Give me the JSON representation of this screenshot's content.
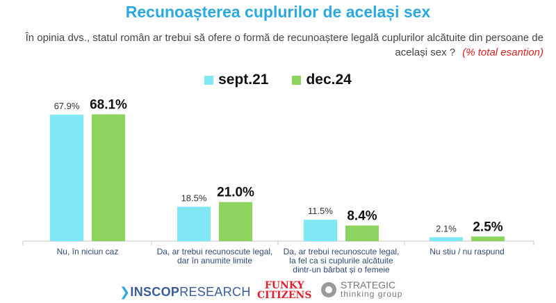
{
  "header": {
    "title": "Recunoașterea cuplurilor de același sex",
    "question": "În opinia dvs., statul român ar trebui să ofere o formă de recunoaștere legală cuplurilor alcătuite din persoane de același sex ?",
    "note": "(% total esantion)"
  },
  "colors": {
    "sept21": "#7fe8f4",
    "dec24": "#8dd360",
    "title": "#2aa8e0",
    "note": "#e02020"
  },
  "chart_data": {
    "type": "bar",
    "title": "Recunoașterea cuplurilor de același sex",
    "categories": [
      [
        "Nu, în niciun caz"
      ],
      [
        "Da, ar trebui recunoscute legal,",
        "dar în anumite limite"
      ],
      [
        "Da, ar trebui recunoscute legal,",
        "la fel ca si cuplurile alcătuite",
        "dintr-un bărbat și o femeie"
      ],
      [
        "Nu stiu / nu raspund"
      ]
    ],
    "series": [
      {
        "name": "sept.21",
        "values": [
          67.9,
          18.5,
          11.5,
          2.1
        ],
        "labels": [
          "67.9%",
          "18.5%",
          "11.5%",
          "2.1%"
        ]
      },
      {
        "name": "dec.24",
        "values": [
          68.1,
          21.0,
          8.4,
          2.5
        ],
        "labels": [
          "68.1%",
          "21.0%",
          "8.4%",
          "2.5%"
        ]
      }
    ],
    "ylim": [
      0,
      100
    ],
    "grid": false,
    "legend": "top-center"
  },
  "logos": {
    "inscop_bold": "INSCOP",
    "inscop_rest": "RESEARCH",
    "funky_line1": "FUNKY",
    "funky_line2": "CITIZENS",
    "strategic_line1": "STRATEGIC",
    "strategic_line2": "thinking group"
  }
}
